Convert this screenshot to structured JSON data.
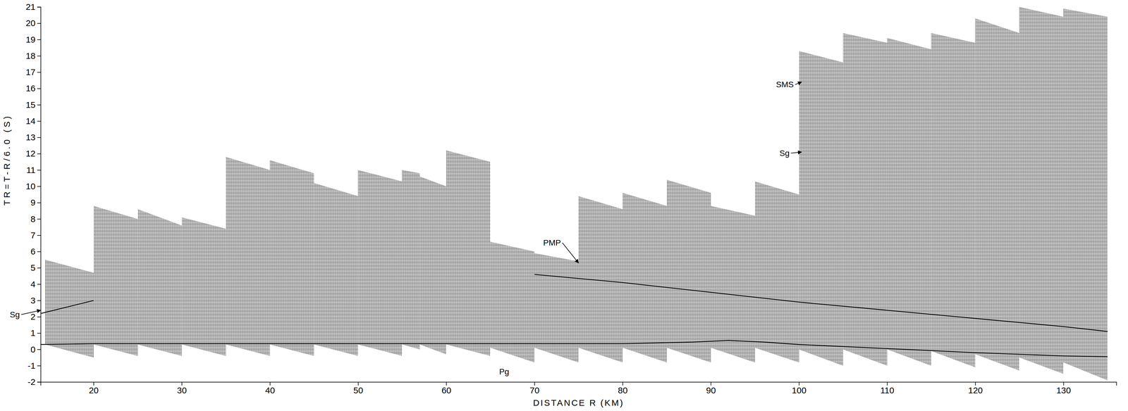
{
  "chart_data": {
    "type": "record_section",
    "xlabel": "DISTANCE R (KM)",
    "ylabel": "TR=T-R/6.0 (S)",
    "xlim": [
      14,
      136
    ],
    "ylim": [
      -2,
      21
    ],
    "xticks": [
      20,
      30,
      40,
      50,
      60,
      70,
      80,
      90,
      100,
      110,
      120,
      130
    ],
    "yticks": [
      -2,
      -1,
      0,
      1,
      2,
      3,
      4,
      5,
      6,
      7,
      8,
      9,
      10,
      11,
      12,
      13,
      14,
      15,
      16,
      17,
      18,
      19,
      20,
      21
    ],
    "color": "#303030",
    "gathers": [
      {
        "x": [
          14.5,
          20
        ],
        "top": [
          5.5,
          4.7
        ],
        "bottom": [
          0.3,
          -0.5
        ]
      },
      {
        "x": [
          20,
          25
        ],
        "top": [
          8.8,
          8.0
        ],
        "bottom": [
          0.3,
          -0.4
        ]
      },
      {
        "x": [
          25,
          30
        ],
        "top": [
          8.6,
          7.6
        ],
        "bottom": [
          0.3,
          -0.4
        ]
      },
      {
        "x": [
          30,
          35
        ],
        "top": [
          8.1,
          7.4
        ],
        "bottom": [
          0.3,
          -0.4
        ]
      },
      {
        "x": [
          35,
          40
        ],
        "top": [
          11.8,
          11.0
        ],
        "bottom": [
          0.3,
          -0.4
        ]
      },
      {
        "x": [
          40,
          45
        ],
        "top": [
          11.6,
          10.8
        ],
        "bottom": [
          0.3,
          -0.4
        ]
      },
      {
        "x": [
          45,
          50
        ],
        "top": [
          10.2,
          9.4
        ],
        "bottom": [
          0.3,
          -0.4
        ]
      },
      {
        "x": [
          50,
          55
        ],
        "top": [
          11.0,
          10.3
        ],
        "bottom": [
          0.3,
          -0.4
        ]
      },
      {
        "x": [
          55,
          57
        ],
        "top": [
          11.0,
          10.8
        ],
        "bottom": [
          0.3,
          0.0
        ]
      },
      {
        "x": [
          57,
          60
        ],
        "top": [
          10.6,
          10.0
        ],
        "bottom": [
          0.3,
          -0.3
        ]
      },
      {
        "x": [
          60,
          65
        ],
        "top": [
          12.2,
          11.5
        ],
        "bottom": [
          0.3,
          -0.4
        ]
      },
      {
        "x": [
          65,
          70
        ],
        "top": [
          6.6,
          6.0
        ],
        "bottom": [
          0.1,
          -0.8
        ]
      },
      {
        "x": [
          70,
          75
        ],
        "top": [
          5.9,
          5.4
        ],
        "bottom": [
          0.1,
          -0.8
        ]
      },
      {
        "x": [
          75,
          80
        ],
        "top": [
          9.4,
          8.6
        ],
        "bottom": [
          0.1,
          -0.8
        ]
      },
      {
        "x": [
          80,
          85
        ],
        "top": [
          9.6,
          8.8
        ],
        "bottom": [
          0.1,
          -0.8
        ]
      },
      {
        "x": [
          85,
          90
        ],
        "top": [
          10.4,
          9.6
        ],
        "bottom": [
          0.1,
          -0.8
        ]
      },
      {
        "x": [
          90,
          95
        ],
        "top": [
          8.8,
          8.2
        ],
        "bottom": [
          0.1,
          -0.8
        ]
      },
      {
        "x": [
          95,
          100
        ],
        "top": [
          10.3,
          9.5
        ],
        "bottom": [
          0.1,
          -0.8
        ]
      },
      {
        "x": [
          100,
          105
        ],
        "top": [
          18.3,
          17.6
        ],
        "bottom": [
          0.0,
          -1.0
        ]
      },
      {
        "x": [
          105,
          110
        ],
        "top": [
          19.4,
          18.8
        ],
        "bottom": [
          0.0,
          -1.0
        ]
      },
      {
        "x": [
          110,
          115
        ],
        "top": [
          19.1,
          18.4
        ],
        "bottom": [
          0.0,
          -1.0
        ]
      },
      {
        "x": [
          115,
          120
        ],
        "top": [
          19.4,
          18.8
        ],
        "bottom": [
          -0.1,
          -1.1
        ]
      },
      {
        "x": [
          120,
          125
        ],
        "top": [
          20.3,
          19.4
        ],
        "bottom": [
          -0.3,
          -1.3
        ]
      },
      {
        "x": [
          125,
          130
        ],
        "top": [
          21.0,
          20.4
        ],
        "bottom": [
          -0.5,
          -1.5
        ]
      },
      {
        "x": [
          130,
          135
        ],
        "top": [
          20.9,
          20.4
        ],
        "bottom": [
          -0.8,
          -1.9
        ]
      }
    ],
    "curves": [
      {
        "color": "#000000",
        "x": [
          14,
          20,
          30,
          40,
          50,
          60,
          70,
          80,
          88,
          92,
          96,
          100,
          110,
          120,
          130,
          135
        ],
        "values": [
          0.3,
          0.35,
          0.35,
          0.35,
          0.35,
          0.35,
          0.35,
          0.35,
          0.45,
          0.55,
          0.45,
          0.3,
          0.05,
          -0.2,
          -0.4,
          -0.45
        ]
      },
      {
        "color": "#000000",
        "x": [
          70,
          80,
          90,
          100,
          110,
          120,
          130,
          135
        ],
        "values": [
          4.6,
          4.1,
          3.5,
          2.9,
          2.4,
          1.9,
          1.4,
          1.1
        ]
      },
      {
        "color": "#000000",
        "x": [
          14,
          17,
          20
        ],
        "values": [
          2.2,
          2.6,
          3.0
        ]
      }
    ],
    "annotations": [
      {
        "text": "Sg",
        "x": 10.5,
        "y": 2.1,
        "arrow_to": [
          14,
          2.4
        ]
      },
      {
        "text": "PMP",
        "x": 71,
        "y": 6.5,
        "arrow_to": [
          75,
          5.3
        ]
      },
      {
        "text": "Pg",
        "x": 66,
        "y": -1.4
      },
      {
        "text": "SMS",
        "x": 97.4,
        "y": 16.2,
        "arrow_to": [
          100.3,
          16.4
        ]
      },
      {
        "text": "Sg",
        "x": 97.8,
        "y": 12.0,
        "arrow_to": [
          100.3,
          12.1
        ]
      }
    ]
  }
}
